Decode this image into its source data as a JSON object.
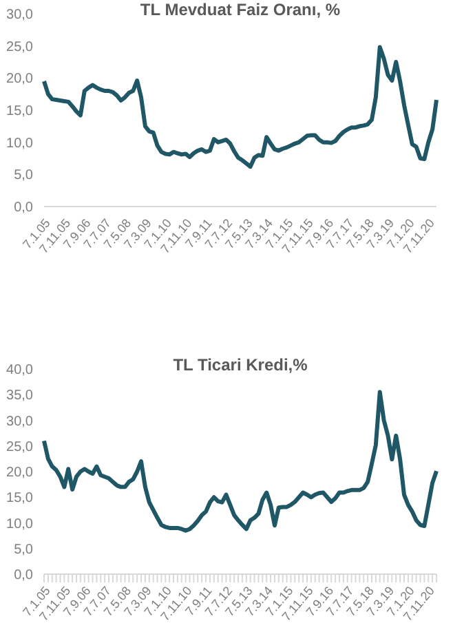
{
  "chart_data": [
    {
      "type": "line",
      "title": "TL  Mevduat Faiz Oranı, %",
      "marker": "none",
      "categories": [
        "7.1.05",
        null,
        null,
        null,
        null,
        "7.11.05",
        null,
        null,
        null,
        null,
        "7.9.06",
        null,
        null,
        null,
        null,
        "7.7.07",
        null,
        null,
        null,
        null,
        "7.5.08",
        null,
        null,
        null,
        null,
        "7.3.09",
        null,
        null,
        null,
        null,
        "7.1.10",
        null,
        null,
        null,
        null,
        "7.11.10",
        null,
        null,
        null,
        null,
        "7.9.11",
        null,
        null,
        null,
        null,
        "7.7.12",
        null,
        null,
        null,
        null,
        "7.5.13",
        null,
        null,
        null,
        null,
        "7.3.14",
        null,
        null,
        null,
        null,
        "7.1.15",
        null,
        null,
        null,
        null,
        "7.11.15",
        null,
        null,
        null,
        null,
        "7.9.16",
        null,
        null,
        null,
        null,
        "7.7.17",
        null,
        null,
        null,
        null,
        "7.5.18",
        null,
        null,
        null,
        null,
        "7.3.19",
        null,
        null,
        null,
        null,
        "7.1.20",
        null,
        null,
        null,
        null,
        "7.11.20",
        null,
        null
      ],
      "series": [
        {
          "color": "#1f5767",
          "values": [
            19.5,
            17.5,
            16.7,
            16.6,
            16.5,
            16.4,
            16.3,
            15.6,
            14.8,
            14.2,
            18.0,
            18.5,
            18.9,
            18.5,
            18.2,
            18.0,
            18.0,
            17.8,
            17.3,
            16.5,
            17.0,
            17.7,
            18.0,
            19.6,
            17.0,
            12.5,
            11.7,
            11.5,
            9.5,
            8.5,
            8.2,
            8.1,
            8.5,
            8.3,
            8.1,
            8.2,
            7.7,
            8.3,
            8.7,
            8.9,
            8.5,
            8.7,
            10.5,
            10.0,
            10.2,
            10.4,
            9.8,
            8.6,
            7.6,
            7.2,
            6.7,
            6.2,
            7.6,
            8.0,
            7.9,
            10.8,
            9.8,
            8.9,
            8.7,
            9.0,
            9.2,
            9.5,
            9.8,
            10.0,
            10.5,
            11.0,
            11.1,
            11.1,
            10.4,
            10.0,
            10.0,
            9.9,
            10.2,
            11.0,
            11.6,
            12.0,
            12.3,
            12.3,
            12.5,
            12.6,
            12.8,
            13.5,
            17.0,
            24.8,
            23.0,
            20.5,
            19.6,
            22.5,
            19.5,
            15.8,
            12.7,
            9.7,
            9.3,
            7.5,
            7.4,
            10.0,
            12.0,
            16.6
          ]
        }
      ],
      "ylim": [
        0,
        30
      ],
      "yticks": [
        {
          "value": 0,
          "label": "0,0"
        },
        {
          "value": 5,
          "label": "5,0"
        },
        {
          "value": 10,
          "label": "10,0"
        },
        {
          "value": 15,
          "label": "15,0"
        },
        {
          "value": 20,
          "label": "20,0"
        },
        {
          "value": 25,
          "label": "25,0"
        },
        {
          "value": 30,
          "label": "30,0"
        }
      ]
    },
    {
      "type": "line",
      "title": "TL Ticari Kredi,%",
      "marker": "none",
      "categories": [
        "7.1.05",
        null,
        null,
        null,
        null,
        "7.11.05",
        null,
        null,
        null,
        null,
        "7.9.06",
        null,
        null,
        null,
        null,
        "7.7.07",
        null,
        null,
        null,
        null,
        "7.5.08",
        null,
        null,
        null,
        null,
        "7.3.09",
        null,
        null,
        null,
        null,
        "7.1.10",
        null,
        null,
        null,
        null,
        "7.11.10",
        null,
        null,
        null,
        null,
        "7.9.11",
        null,
        null,
        null,
        null,
        "7.7.12",
        null,
        null,
        null,
        null,
        "7.5.13",
        null,
        null,
        null,
        null,
        "7.3.14",
        null,
        null,
        null,
        null,
        "7.1.15",
        null,
        null,
        null,
        null,
        "7.11.15",
        null,
        null,
        null,
        null,
        "7.9.16",
        null,
        null,
        null,
        null,
        "7.7.17",
        null,
        null,
        null,
        null,
        "7.5.18",
        null,
        null,
        null,
        null,
        "7.3.19",
        null,
        null,
        null,
        null,
        "7.1.20",
        null,
        null,
        null,
        null,
        "7.11.20",
        null,
        null
      ],
      "series": [
        {
          "color": "#1f5767",
          "values": [
            26.0,
            22.5,
            21.0,
            20.3,
            19.0,
            17.0,
            20.5,
            16.5,
            19.0,
            20.0,
            20.5,
            20.0,
            19.6,
            21.0,
            19.3,
            19.0,
            18.7,
            18.0,
            17.3,
            17.0,
            17.0,
            18.0,
            18.5,
            20.0,
            22.0,
            17.0,
            14.0,
            12.5,
            11.0,
            9.6,
            9.2,
            9.0,
            9.0,
            9.0,
            8.8,
            8.5,
            8.8,
            9.5,
            10.4,
            11.5,
            12.2,
            14.0,
            15.0,
            14.2,
            14.0,
            15.5,
            13.5,
            11.5,
            10.5,
            9.6,
            8.8,
            10.5,
            11.0,
            11.8,
            14.5,
            15.9,
            13.5,
            9.5,
            13.0,
            13.1,
            13.1,
            13.5,
            14.1,
            15.0,
            15.9,
            15.5,
            15.0,
            15.5,
            15.8,
            15.9,
            15.0,
            14.1,
            14.8,
            15.9,
            15.9,
            16.2,
            16.4,
            16.4,
            16.4,
            16.8,
            18.0,
            21.5,
            25.2,
            35.5,
            30.0,
            27.0,
            22.4,
            27.0,
            22.4,
            15.5,
            13.5,
            12.2,
            10.5,
            9.6,
            9.4,
            13.6,
            17.8,
            20.1
          ]
        }
      ],
      "ylim": [
        0,
        40
      ],
      "yticks": [
        {
          "value": 0,
          "label": "0,0"
        },
        {
          "value": 5,
          "label": "5,0"
        },
        {
          "value": 10,
          "label": "10,0"
        },
        {
          "value": 15,
          "label": "15,0"
        },
        {
          "value": 20,
          "label": "20,0"
        },
        {
          "value": 25,
          "label": "25,0"
        },
        {
          "value": 30,
          "label": "30,0"
        },
        {
          "value": 35,
          "label": "35,0"
        },
        {
          "value": 40,
          "label": "40,0"
        }
      ]
    }
  ]
}
